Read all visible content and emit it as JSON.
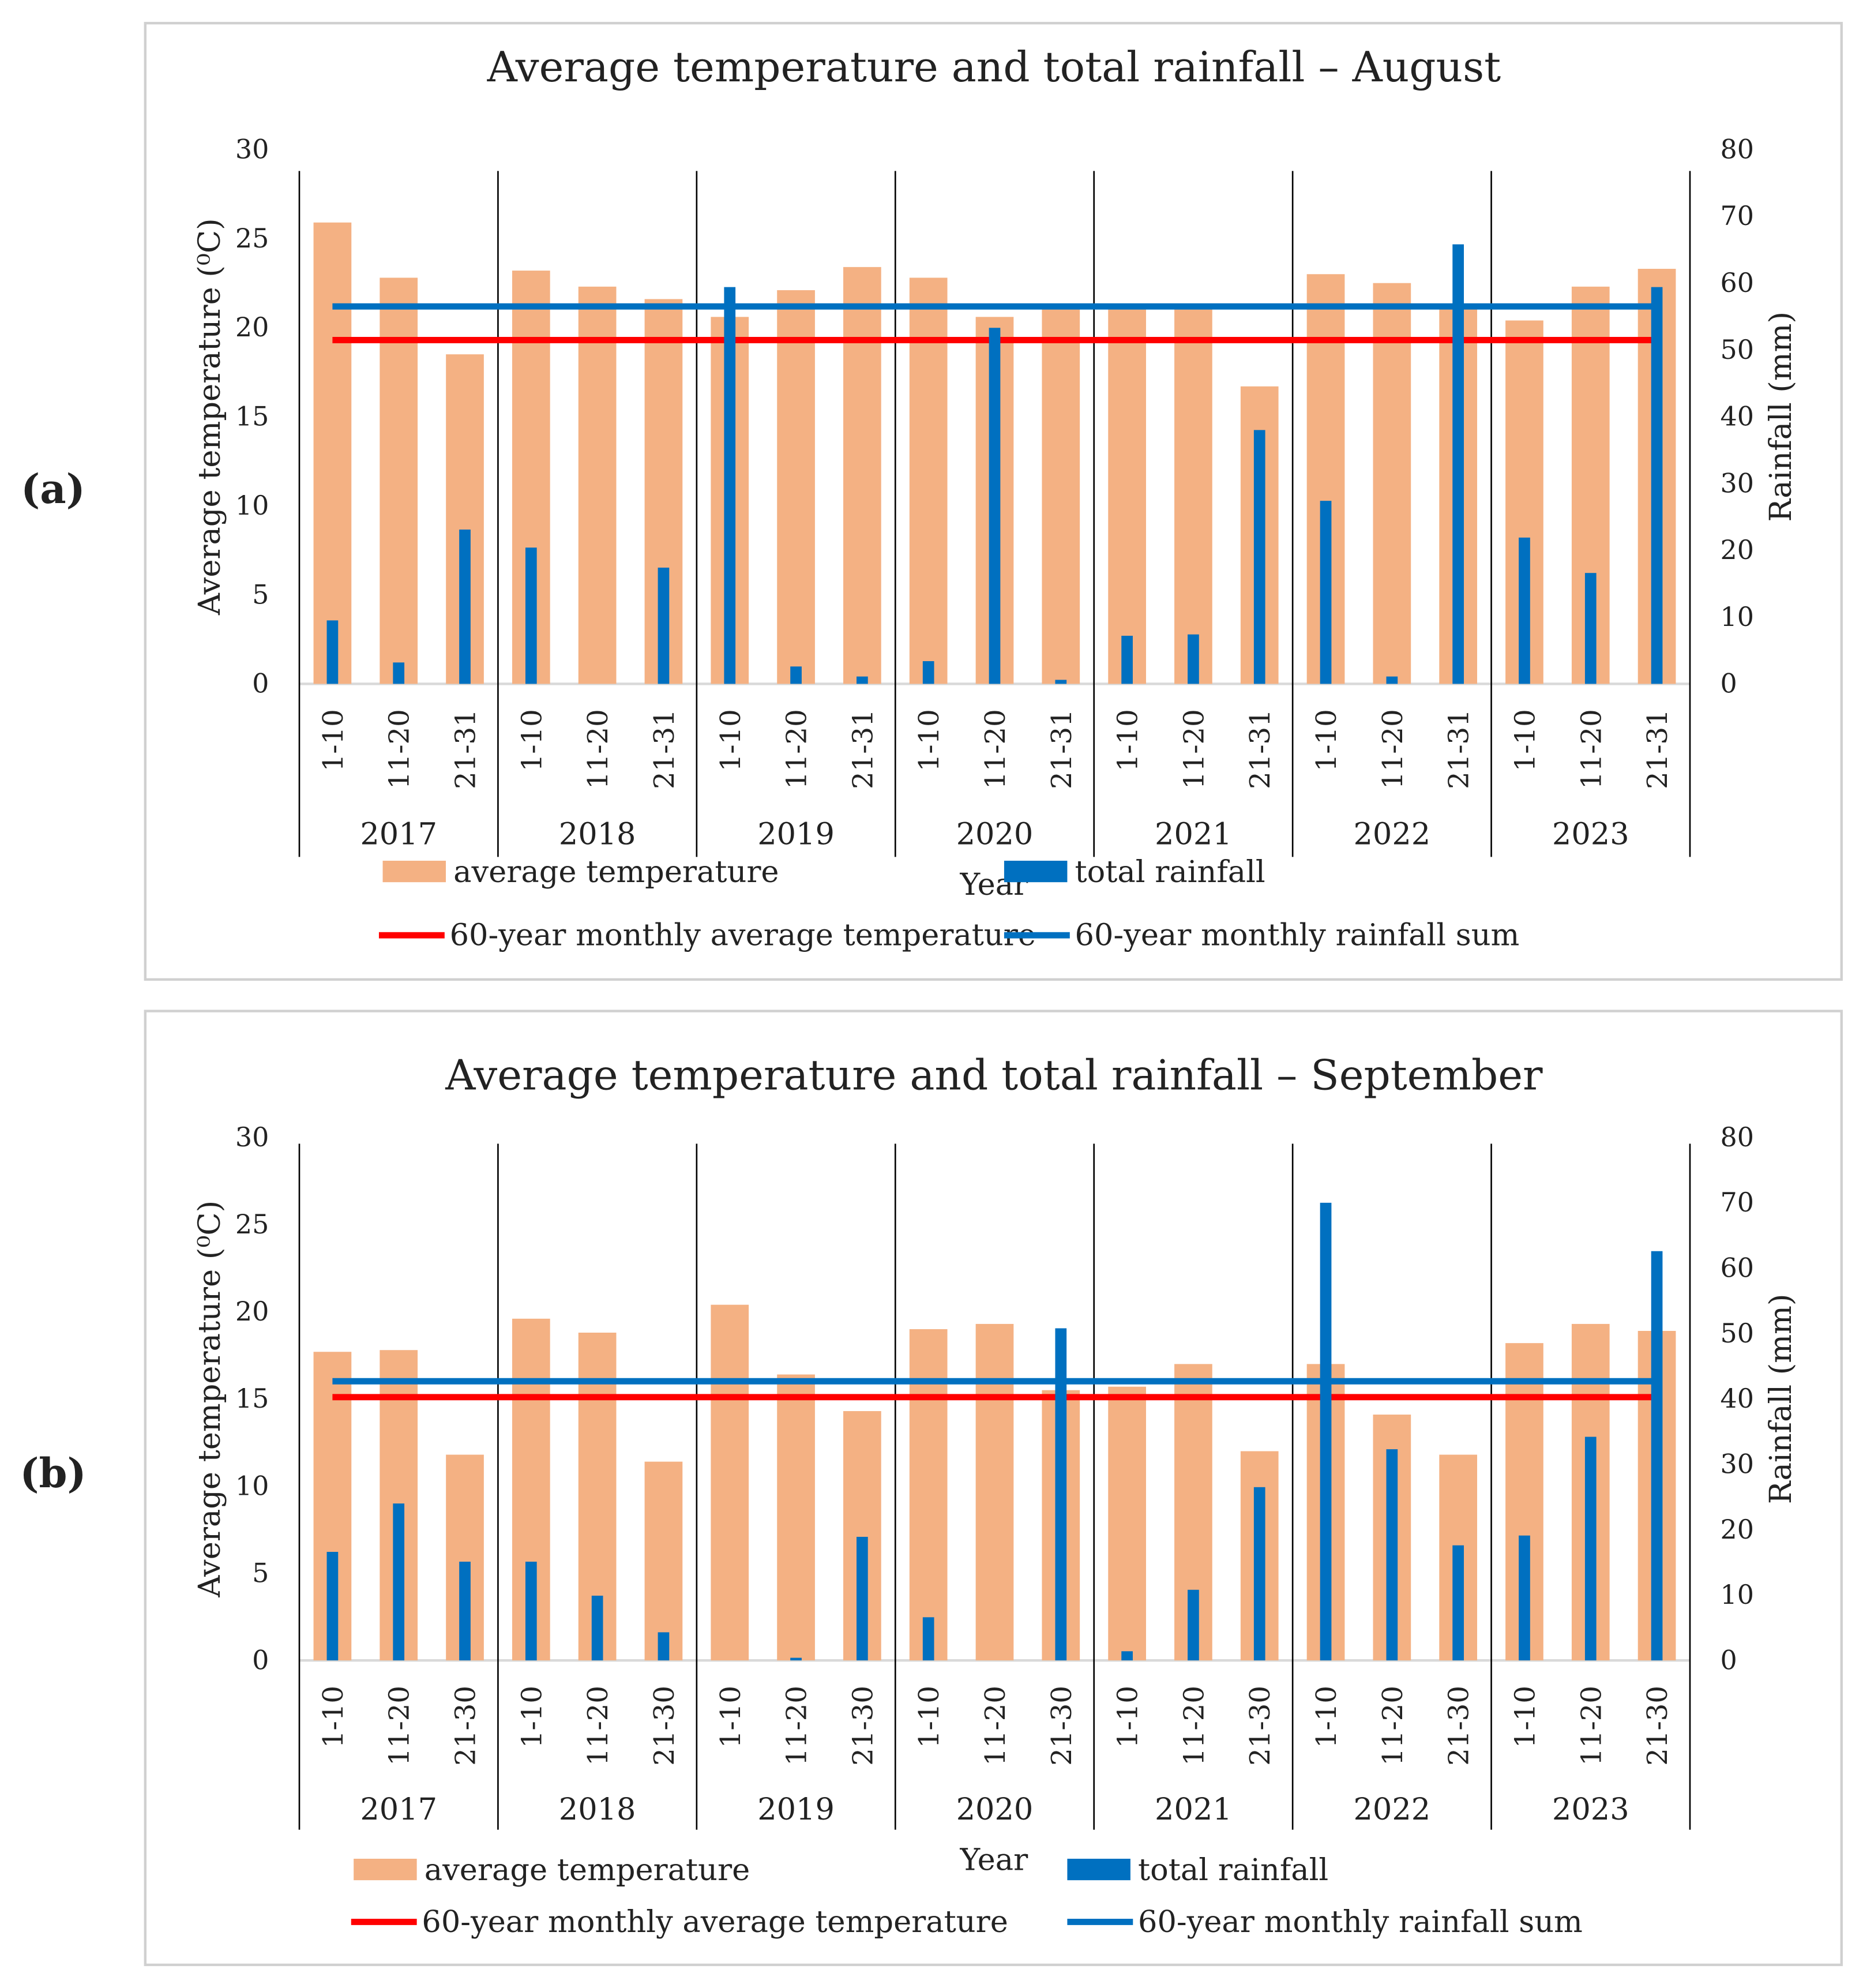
{
  "panel_labels": [
    "(a)",
    "(b)"
  ],
  "chart_data": [
    {
      "type": "bar",
      "title": "Average temperature and total rainfall –  August",
      "xlabel": "Year",
      "ylabel": "Average temperature (⁰C)",
      "y2label": "Rainfall (mm)",
      "ylim": [
        0,
        30
      ],
      "y2lim": [
        0,
        80
      ],
      "yticks": [
        "0",
        "5",
        "10",
        "15",
        "20",
        "25",
        "30"
      ],
      "y2ticks": [
        "0",
        "10",
        "20",
        "30",
        "40",
        "50",
        "60",
        "70",
        "80"
      ],
      "years": [
        "2017",
        "2018",
        "2019",
        "2020",
        "2021",
        "2022",
        "2023"
      ],
      "periods": [
        "1-10",
        "11-20",
        "21-31"
      ],
      "series": [
        {
          "name": "average temperature",
          "axis": "left",
          "kind": "bar",
          "color": "#F4B183",
          "values": [
            25.9,
            22.8,
            18.5,
            23.2,
            22.3,
            21.6,
            20.6,
            22.1,
            23.4,
            22.8,
            20.6,
            21.2,
            21.2,
            21.2,
            16.7,
            23.0,
            22.5,
            21.1,
            20.4,
            22.3,
            23.3
          ]
        },
        {
          "name": "total rainfall",
          "axis": "right",
          "kind": "bar",
          "color": "#0070C0",
          "values": [
            9.5,
            3.2,
            23.1,
            20.4,
            0,
            17.4,
            59.4,
            2.6,
            1.1,
            3.4,
            53.3,
            0.6,
            7.2,
            7.4,
            38.0,
            27.4,
            1.1,
            65.8,
            21.9,
            16.6,
            59.4
          ]
        },
        {
          "name": "60-year monthly average temperature",
          "axis": "left",
          "kind": "line",
          "color": "#FF0000",
          "value": 19.3
        },
        {
          "name": "60-year monthly rainfall sum",
          "axis": "right",
          "kind": "line",
          "color": "#0070C0",
          "value": 56.5
        }
      ]
    },
    {
      "type": "bar",
      "title": "Average temperature and total rainfall –  September",
      "xlabel": "Year",
      "ylabel": "Average temperature (⁰C)",
      "y2label": "Rainfall (mm)",
      "ylim": [
        0,
        30
      ],
      "y2lim": [
        0,
        80
      ],
      "yticks": [
        "0",
        "5",
        "10",
        "15",
        "20",
        "25",
        "30"
      ],
      "y2ticks": [
        "0",
        "10",
        "20",
        "30",
        "40",
        "50",
        "60",
        "70",
        "80"
      ],
      "years": [
        "2017",
        "2018",
        "2019",
        "2020",
        "2021",
        "2022",
        "2023"
      ],
      "periods": [
        "1-10",
        "11-20",
        "21-30"
      ],
      "series": [
        {
          "name": "average temperature",
          "axis": "left",
          "kind": "bar",
          "color": "#F4B183",
          "values": [
            17.7,
            17.8,
            11.8,
            19.6,
            18.8,
            11.4,
            20.4,
            16.4,
            14.3,
            19.0,
            19.3,
            15.5,
            15.7,
            17.0,
            12.0,
            17.0,
            14.1,
            11.8,
            18.2,
            19.3,
            18.9
          ]
        },
        {
          "name": "total rainfall",
          "axis": "right",
          "kind": "bar",
          "color": "#0070C0",
          "values": [
            16.6,
            24.0,
            15.1,
            15.1,
            9.9,
            4.3,
            0,
            0.4,
            18.9,
            6.6,
            0,
            50.8,
            1.4,
            10.8,
            26.5,
            70.0,
            32.3,
            17.6,
            19.1,
            34.2,
            62.6
          ]
        },
        {
          "name": "60-year monthly average temperature",
          "axis": "left",
          "kind": "line",
          "color": "#FF0000",
          "value": 15.1
        },
        {
          "name": "60-year monthly rainfall sum",
          "axis": "right",
          "kind": "line",
          "color": "#0070C0",
          "value": 42.7
        }
      ]
    }
  ]
}
